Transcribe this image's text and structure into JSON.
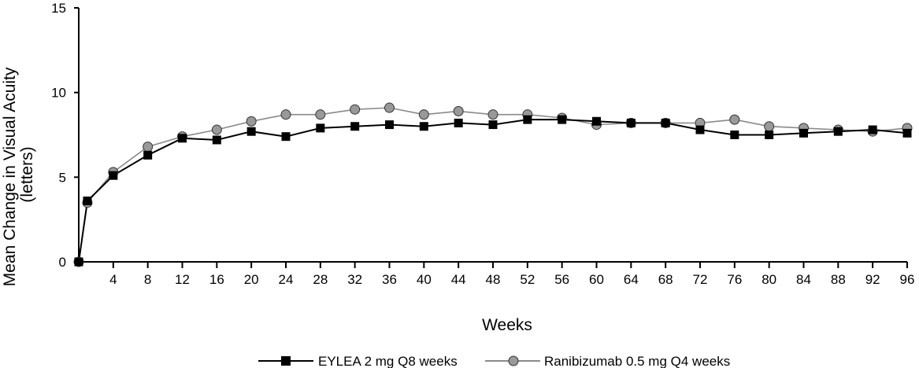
{
  "chart_data": {
    "type": "line",
    "xlabel": "Weeks",
    "ylabel_lines": [
      "Mean Change in Visual Acuity",
      "(letters)"
    ],
    "ylim": [
      0,
      15
    ],
    "yticks": [
      0,
      5,
      10,
      15
    ],
    "xlim": [
      0,
      96
    ],
    "xticks": [
      4,
      8,
      12,
      16,
      20,
      24,
      28,
      32,
      36,
      40,
      44,
      48,
      52,
      56,
      60,
      64,
      68,
      72,
      76,
      80,
      84,
      88,
      92,
      96
    ],
    "grid": false,
    "legend_position": "bottom",
    "series": [
      {
        "name": "EYLEA 2 mg Q8 weeks",
        "marker": "square",
        "line_color": "#000000",
        "marker_color": "#000000",
        "x": [
          0,
          1,
          4,
          8,
          12,
          16,
          20,
          24,
          28,
          32,
          36,
          40,
          44,
          48,
          52,
          56,
          60,
          64,
          68,
          72,
          76,
          80,
          84,
          88,
          92,
          96
        ],
        "y": [
          0,
          3.6,
          5.1,
          6.3,
          7.3,
          7.2,
          7.7,
          7.4,
          7.9,
          8.0,
          8.1,
          8.0,
          8.2,
          8.1,
          8.4,
          8.4,
          8.3,
          8.2,
          8.2,
          7.8,
          7.5,
          7.5,
          7.6,
          7.7,
          7.8,
          7.6
        ]
      },
      {
        "name": "Ranibizumab 0.5 mg Q4 weeks",
        "marker": "circle",
        "line_color": "#8a8a8a",
        "marker_color": "#999999",
        "x": [
          0,
          1,
          4,
          8,
          12,
          16,
          20,
          24,
          28,
          32,
          36,
          40,
          44,
          48,
          52,
          56,
          60,
          64,
          68,
          72,
          76,
          80,
          84,
          88,
          92,
          96
        ],
        "y": [
          0,
          3.5,
          5.3,
          6.8,
          7.4,
          7.8,
          8.3,
          8.7,
          8.7,
          9.0,
          9.1,
          8.7,
          8.9,
          8.7,
          8.7,
          8.5,
          8.1,
          8.2,
          8.2,
          8.2,
          8.4,
          8.0,
          7.9,
          7.8,
          7.7,
          7.9
        ]
      }
    ]
  }
}
